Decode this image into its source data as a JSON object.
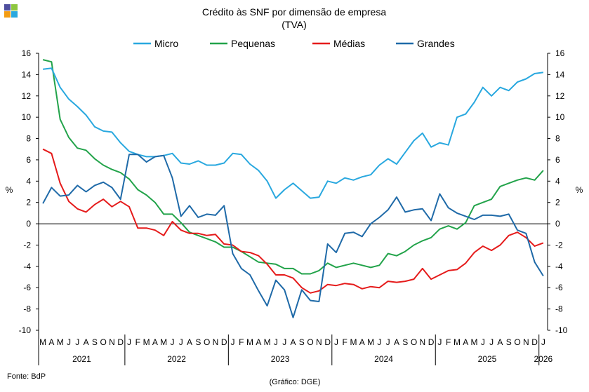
{
  "chart_data": {
    "type": "line",
    "title": "Crédito às SNF por dimensão de empresa",
    "subtitle": "(TVA)",
    "ylabel_left": "%",
    "ylabel_right": "%",
    "ylim": [
      -10,
      16
    ],
    "yticks": [
      -10,
      -8,
      -6,
      -4,
      -2,
      0,
      2,
      4,
      6,
      8,
      10,
      12,
      14,
      16
    ],
    "grid": false,
    "legend_position": "top",
    "months": [
      "M",
      "A",
      "M",
      "J",
      "J",
      "A",
      "S",
      "O",
      "N",
      "D",
      "J",
      "F",
      "M",
      "A",
      "M",
      "J",
      "J",
      "A",
      "S",
      "O",
      "N",
      "D",
      "J",
      "F",
      "M",
      "A",
      "M",
      "J",
      "J",
      "A",
      "S",
      "O",
      "N",
      "D",
      "J",
      "F",
      "M",
      "A",
      "M",
      "J",
      "J",
      "A",
      "S",
      "O",
      "N",
      "D",
      "J",
      "F",
      "M",
      "A",
      "M",
      "J",
      "J",
      "A",
      "S",
      "O",
      "N",
      "D",
      "J"
    ],
    "years": [
      {
        "label": "2021",
        "start": 0,
        "end": 9
      },
      {
        "label": "2022",
        "start": 10,
        "end": 21
      },
      {
        "label": "2023",
        "start": 22,
        "end": 33
      },
      {
        "label": "2024",
        "start": 34,
        "end": 45
      },
      {
        "label": "2025",
        "start": 46,
        "end": 57
      },
      {
        "label": "2026",
        "start": 58,
        "end": 58
      }
    ],
    "series": [
      {
        "name": "Micro",
        "color": "#29a8df",
        "values": [
          14.5,
          14.6,
          12.8,
          11.7,
          11.0,
          10.2,
          9.1,
          8.7,
          8.6,
          7.6,
          6.8,
          6.5,
          6.3,
          6.3,
          6.4,
          6.6,
          5.7,
          5.6,
          5.9,
          5.5,
          5.5,
          5.7,
          6.6,
          6.5,
          5.6,
          5.0,
          4.0,
          2.4,
          3.2,
          3.8,
          3.1,
          2.4,
          2.5,
          4.0,
          3.8,
          4.3,
          4.1,
          4.4,
          4.6,
          5.5,
          6.1,
          5.6,
          6.7,
          7.8,
          8.5,
          7.2,
          7.6,
          7.4,
          10.0,
          10.3,
          11.4,
          12.8,
          12.0,
          12.8,
          12.5,
          13.3,
          13.6,
          14.1,
          14.2
        ]
      },
      {
        "name": "Pequenas",
        "color": "#22a34a",
        "values": [
          15.4,
          15.2,
          9.8,
          8.1,
          7.1,
          6.9,
          6.1,
          5.5,
          5.1,
          4.8,
          4.2,
          3.2,
          2.7,
          2.0,
          0.9,
          0.9,
          0.1,
          -0.8,
          -1.1,
          -1.4,
          -1.7,
          -2.2,
          -2.2,
          -2.6,
          -3.1,
          -3.6,
          -3.7,
          -3.8,
          -4.2,
          -4.2,
          -4.7,
          -4.7,
          -4.4,
          -3.7,
          -4.1,
          -3.9,
          -3.7,
          -3.9,
          -4.1,
          -3.9,
          -2.8,
          -3.0,
          -2.6,
          -2.0,
          -1.6,
          -1.3,
          -0.5,
          -0.2,
          -0.5,
          0.1,
          1.7,
          2.0,
          2.3,
          3.5,
          3.8,
          4.1,
          4.3,
          4.1,
          5.0
        ]
      },
      {
        "name": "Médias",
        "color": "#e51b1b",
        "values": [
          7.0,
          6.6,
          3.8,
          2.1,
          1.4,
          1.1,
          1.8,
          2.3,
          1.6,
          2.1,
          1.6,
          -0.4,
          -0.4,
          -0.6,
          -1.1,
          0.2,
          -0.6,
          -0.9,
          -0.9,
          -1.1,
          -1.0,
          -1.9,
          -2.0,
          -2.6,
          -2.7,
          -3.0,
          -3.8,
          -4.8,
          -4.8,
          -5.1,
          -6.0,
          -6.5,
          -6.3,
          -5.7,
          -5.8,
          -5.6,
          -5.7,
          -6.1,
          -5.9,
          -6.0,
          -5.4,
          -5.5,
          -5.4,
          -5.2,
          -4.2,
          -5.2,
          -4.8,
          -4.4,
          -4.3,
          -3.7,
          -2.7,
          -2.1,
          -2.5,
          -2.0,
          -1.1,
          -0.8,
          -1.3,
          -2.1,
          -1.8
        ]
      },
      {
        "name": "Grandes",
        "color": "#1f6aa8",
        "values": [
          1.9,
          3.4,
          2.6,
          2.7,
          3.6,
          3.0,
          3.6,
          3.9,
          3.4,
          2.3,
          6.5,
          6.5,
          5.8,
          6.3,
          6.4,
          4.3,
          0.7,
          1.7,
          0.6,
          0.9,
          0.8,
          1.7,
          -2.8,
          -4.2,
          -4.8,
          -6.3,
          -7.7,
          -5.3,
          -6.2,
          -8.8,
          -6.2,
          -7.2,
          -7.3,
          -1.9,
          -2.7,
          -0.9,
          -0.8,
          -1.2,
          0.0,
          0.6,
          1.3,
          2.5,
          1.1,
          1.3,
          1.4,
          0.3,
          2.8,
          1.5,
          1.0,
          0.7,
          0.4,
          0.8,
          0.8,
          0.7,
          0.9,
          -0.6,
          -0.9,
          -3.6,
          -4.9
        ]
      }
    ],
    "source": "Fonte: BdP",
    "credit": "(Gráfico: DGE)"
  },
  "colors": {
    "axis": "#000000",
    "logo": [
      "#4e4e9e",
      "#8dc63f",
      "#f39c12",
      "#29a8df"
    ]
  }
}
